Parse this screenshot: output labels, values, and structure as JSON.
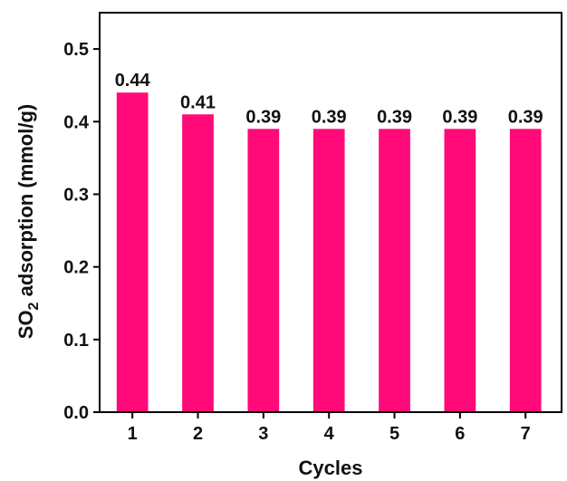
{
  "chart_data": {
    "type": "bar",
    "categories": [
      "1",
      "2",
      "3",
      "4",
      "5",
      "6",
      "7"
    ],
    "values": [
      0.44,
      0.41,
      0.39,
      0.39,
      0.39,
      0.39,
      0.39
    ],
    "data_labels": [
      "0.44",
      "0.41",
      "0.39",
      "0.39",
      "0.39",
      "0.39",
      "0.39"
    ],
    "xlabel": "Cycles",
    "ylabel": {
      "prefix": "SO",
      "subscript": "2",
      "suffix": " adsorption (mmol/g)"
    },
    "ylim": [
      0.0,
      0.55
    ],
    "yticks": [
      0.0,
      0.1,
      0.2,
      0.3,
      0.4,
      0.5
    ],
    "ytick_labels": [
      "0.0",
      "0.1",
      "0.2",
      "0.3",
      "0.4",
      "0.5"
    ],
    "grid": false,
    "legend": "none",
    "bar_color": "#ff0a78"
  }
}
